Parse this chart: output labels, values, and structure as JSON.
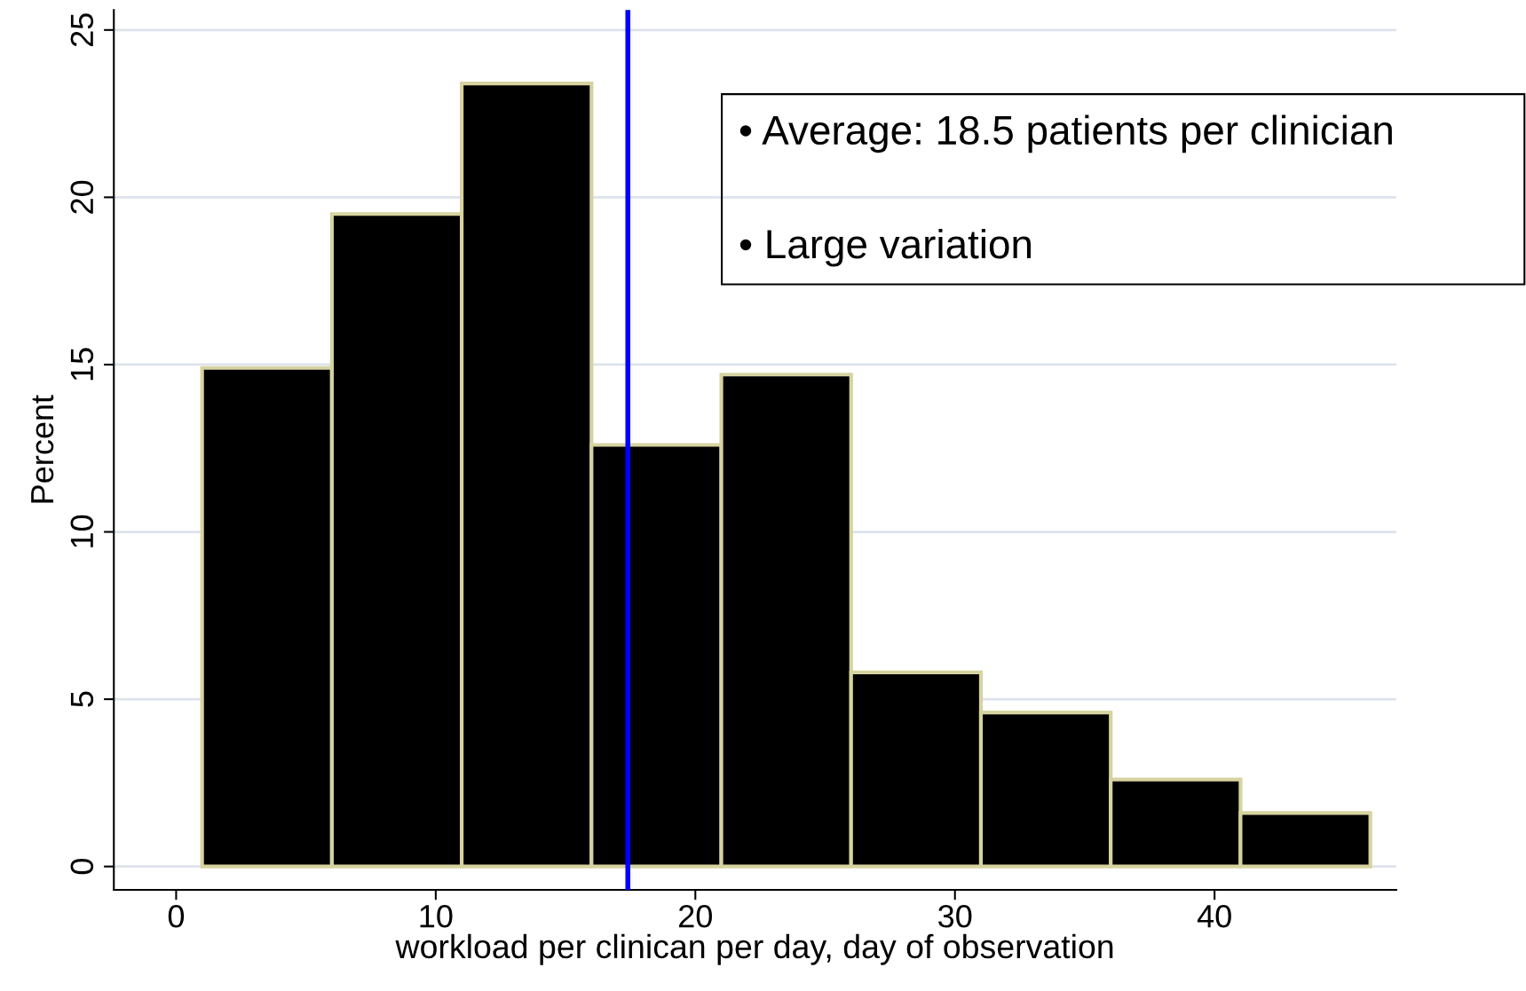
{
  "chart_data": {
    "type": "histogram",
    "xlabel": "workload per clinican per day, day of observation",
    "ylabel": "Percent",
    "bins": [
      1,
      6,
      11,
      16,
      21,
      26,
      31,
      36,
      41,
      46
    ],
    "values": [
      14.9,
      19.5,
      23.4,
      12.6,
      14.7,
      5.8,
      4.6,
      2.6,
      1.6
    ],
    "color": "#000000",
    "xlim": [
      -2.4,
      47
    ],
    "ylim": [
      -0.7,
      25.6
    ],
    "xticks": [
      0,
      10,
      20,
      30,
      40
    ],
    "yticks": [
      0,
      5,
      10,
      15,
      20,
      25
    ],
    "grid": "y",
    "ref_lines": [
      {
        "axis": "x",
        "value": 17.4,
        "color": "#0000ff"
      }
    ],
    "annotations": [
      "• Average: 18.5 patients per clinician",
      "• Large variation"
    ]
  }
}
